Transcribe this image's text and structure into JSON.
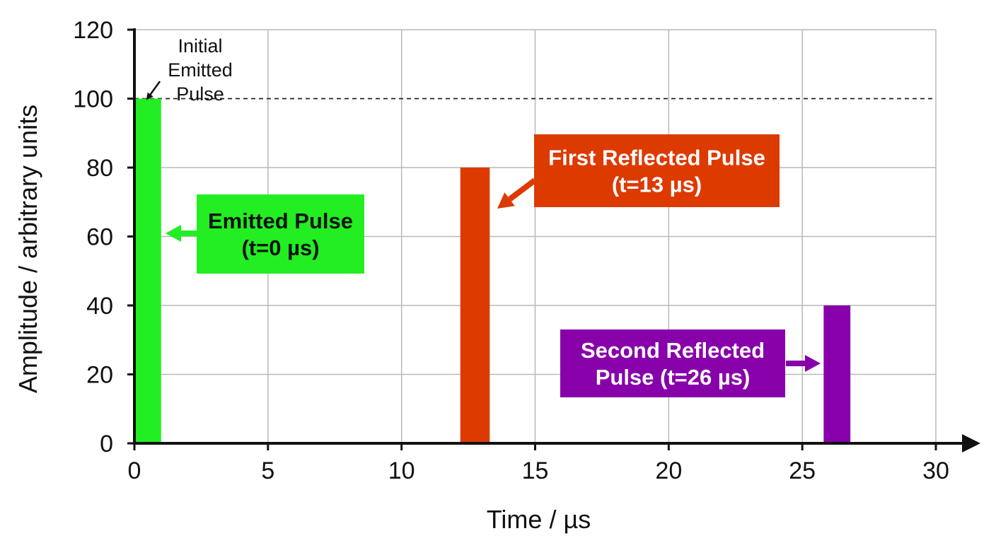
{
  "chart_data": {
    "type": "bar",
    "title": "",
    "xlabel": "Time / µs",
    "ylabel": "Amplitude / arbitrary units",
    "xlim": [
      0,
      30
    ],
    "ylim": [
      0,
      120
    ],
    "x_ticks": [
      "0",
      "5",
      "10",
      "15",
      "20",
      "25",
      "30"
    ],
    "y_ticks": [
      "0",
      "20",
      "40",
      "60",
      "80",
      "100",
      "120"
    ],
    "grid": true,
    "reference_line": {
      "y": 100,
      "style": "dashed"
    },
    "bars": [
      {
        "x_start": 0,
        "x_end": 1,
        "value": 100,
        "color": "#22ee22"
      },
      {
        "x_start": 12.2,
        "x_end": 13.3,
        "value": 80,
        "color": "#dd3a00"
      },
      {
        "x_start": 25.8,
        "x_end": 26.8,
        "value": 40,
        "color": "#8800aa"
      }
    ],
    "annotations": [
      {
        "lines": [
          "Emitted Pulse",
          "(t=0 µs)"
        ],
        "box_color": "#22ee22",
        "text_color": "#111111"
      },
      {
        "lines": [
          "First Reflected Pulse",
          "(t=13 µs)"
        ],
        "box_color": "#dd3a00",
        "text_color": "#ffffff"
      },
      {
        "lines": [
          "Second Reflected",
          "Pulse (t=26 µs)"
        ],
        "box_color": "#8800aa",
        "text_color": "#ffffff"
      },
      {
        "lines": [
          "Initial",
          "Emitted",
          "Pulse"
        ],
        "box_color": "",
        "text_color": "#111111"
      }
    ]
  }
}
